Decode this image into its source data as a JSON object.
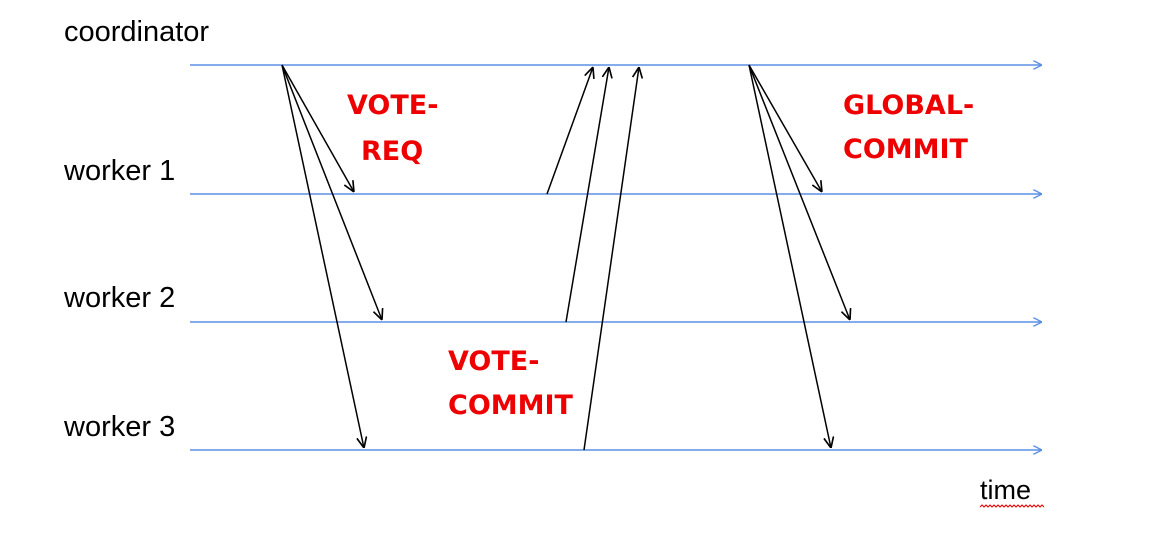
{
  "colors": {
    "timeline": "#5b8fe6",
    "message_arrow": "#000000",
    "message_label": "#ee0000",
    "squiggle": "#ee0000"
  },
  "lanes": [
    {
      "id": "coordinator",
      "label": "coordinator"
    },
    {
      "id": "worker1",
      "label": "worker 1"
    },
    {
      "id": "worker2",
      "label": "worker 2"
    },
    {
      "id": "worker3",
      "label": "worker 3"
    }
  ],
  "axis": {
    "label": "time"
  },
  "message_groups": [
    {
      "id": "vote-req",
      "lines": [
        "VOTE-",
        "REQ"
      ],
      "from": "coordinator",
      "to": [
        "worker1",
        "worker2",
        "worker3"
      ]
    },
    {
      "id": "vote-commit",
      "lines": [
        "VOTE-",
        "COMMIT"
      ],
      "from": [
        "worker1",
        "worker2",
        "worker3"
      ],
      "to": "coordinator"
    },
    {
      "id": "global-commit",
      "lines": [
        "GLOBAL-",
        "COMMIT"
      ],
      "from": "coordinator",
      "to": [
        "worker1",
        "worker2",
        "worker3"
      ]
    }
  ]
}
